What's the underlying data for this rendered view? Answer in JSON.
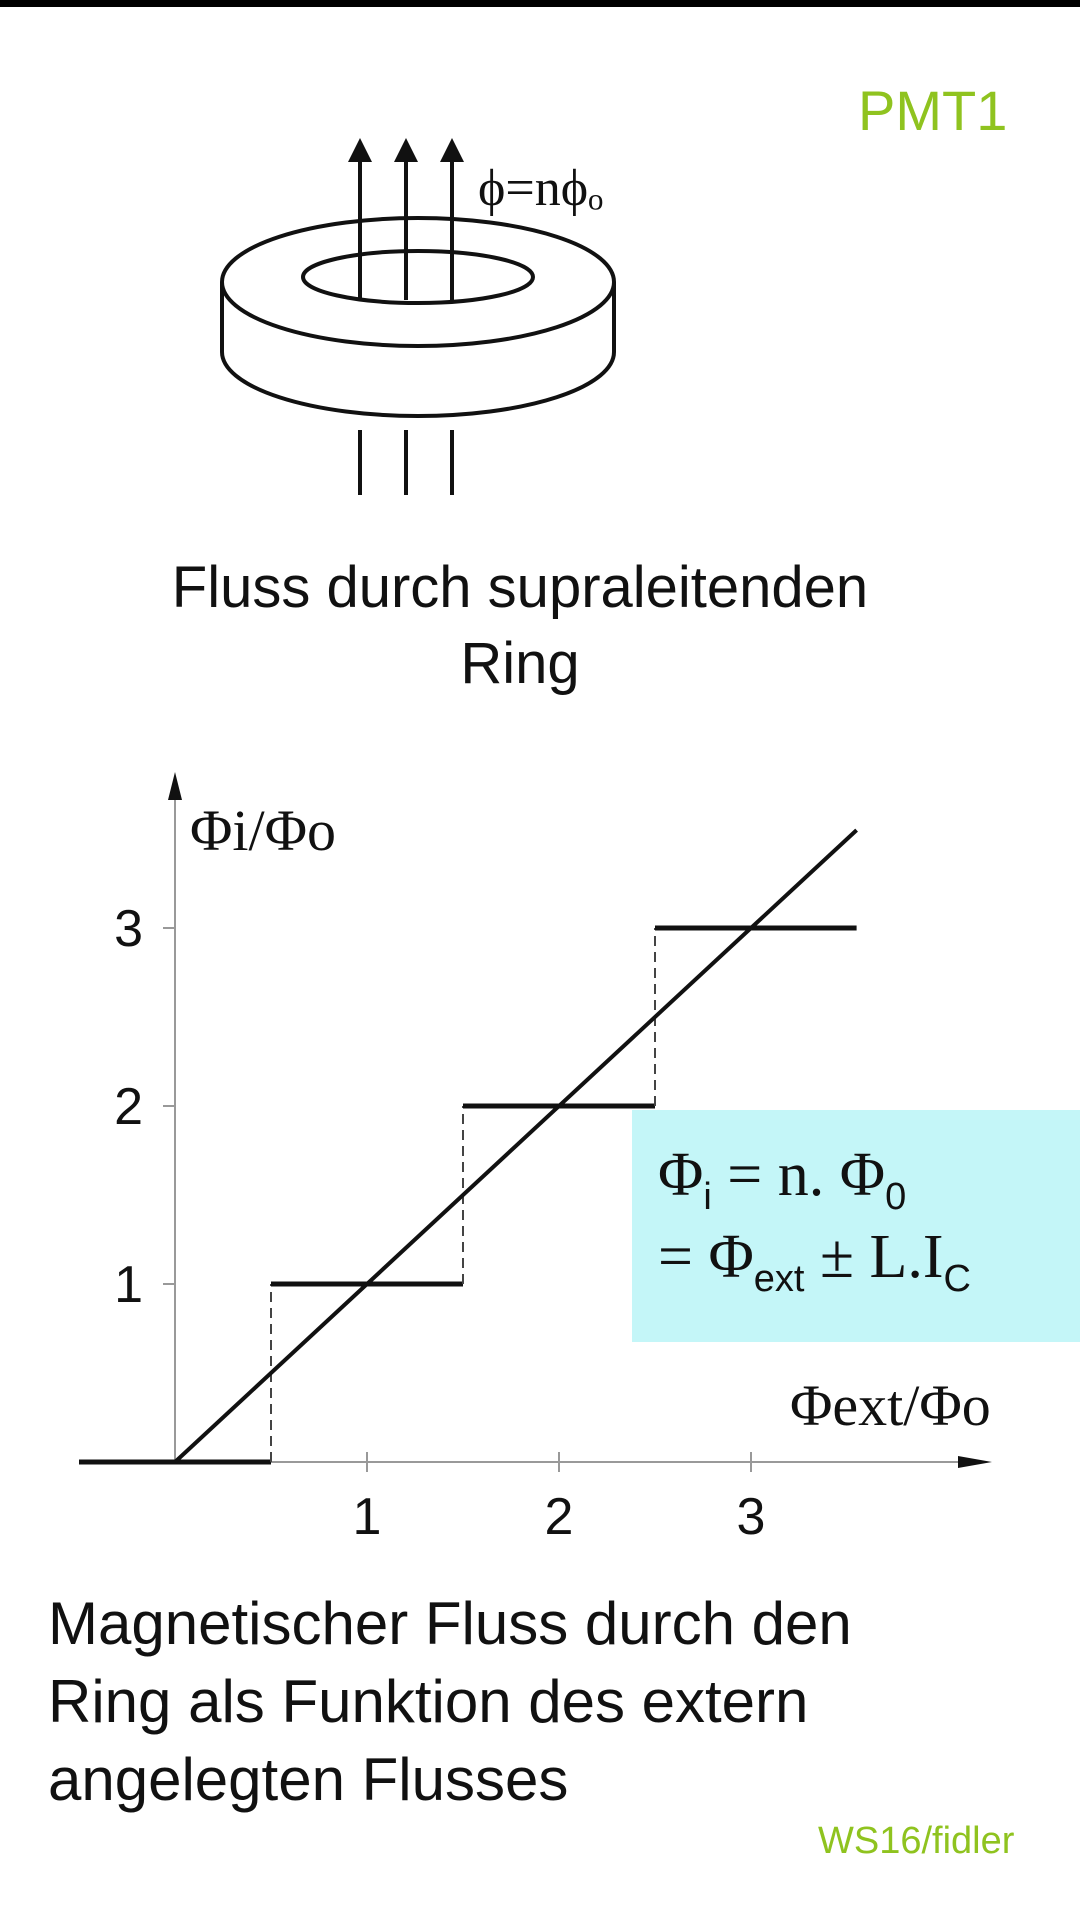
{
  "header": {
    "slide_id": "PMT1"
  },
  "ring": {
    "flux_label": "ϕ=nϕₒ",
    "caption": "Fluss durch supraleitenden Ring"
  },
  "graph": {
    "y_label": "Φi/Φo",
    "x_label": "Φext/Φo",
    "x_ticks": [
      "1",
      "2",
      "3"
    ],
    "y_ticks": [
      "1",
      "2",
      "3"
    ],
    "formula_line1": {
      "a": "Φ",
      "a_sub": "i",
      "b": " = n. Φ",
      "b_sub": "0"
    },
    "formula_line2": {
      "a": "= Φ",
      "a_sub": "ext",
      "b": " ± L.I",
      "b_sub": "C"
    },
    "caption": "Magnetischer Fluss durch den Ring als Funktion des extern angelegten Flusses"
  },
  "chart_data": {
    "type": "line",
    "xlabel": "Φext/Φo",
    "ylabel": "Φi/Φo",
    "xlim": [
      -0.5,
      3.6
    ],
    "ylim": [
      0,
      3.5
    ],
    "series": [
      {
        "x": [
          -0.5,
          0.5,
          0.5,
          1.5,
          1.5,
          2.5,
          2.5,
          3.55
        ],
        "y": [
          0,
          0,
          1,
          1,
          2,
          2,
          3,
          3
        ]
      },
      {
        "x": [
          0,
          3.55
        ],
        "y": [
          0,
          3.55
        ]
      }
    ]
  },
  "footer": {
    "text": "WS16/fidler"
  },
  "colors": {
    "accent": "#8fc31f",
    "formula_bg": "#c4f6f8",
    "ink": "#111111"
  }
}
